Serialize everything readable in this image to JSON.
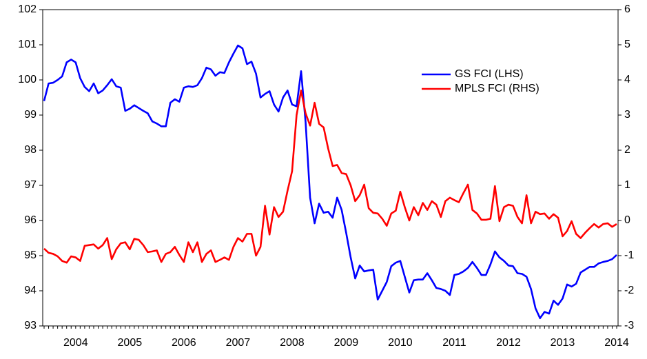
{
  "chart_data": {
    "type": "line",
    "categories": [
      null,
      null,
      null,
      null,
      null,
      null,
      null,
      "2004",
      null,
      null,
      null,
      null,
      null,
      null,
      null,
      null,
      null,
      null,
      null,
      "2005",
      null,
      null,
      null,
      null,
      null,
      null,
      null,
      null,
      null,
      null,
      null,
      "2006",
      null,
      null,
      null,
      null,
      null,
      null,
      null,
      null,
      null,
      null,
      null,
      "2007",
      null,
      null,
      null,
      null,
      null,
      null,
      null,
      null,
      null,
      null,
      null,
      "2008",
      null,
      null,
      null,
      null,
      null,
      null,
      null,
      null,
      null,
      null,
      null,
      "2009",
      null,
      null,
      null,
      null,
      null,
      null,
      null,
      null,
      null,
      null,
      null,
      "2010",
      null,
      null,
      null,
      null,
      null,
      null,
      null,
      null,
      null,
      null,
      null,
      "2011",
      null,
      null,
      null,
      null,
      null,
      null,
      null,
      null,
      null,
      null,
      null,
      "2012",
      null,
      null,
      null,
      null,
      null,
      null,
      null,
      null,
      null,
      null,
      null,
      "2013",
      null,
      null,
      null,
      null,
      null,
      null,
      null,
      null,
      null,
      null,
      null,
      "2014"
    ],
    "series": [
      {
        "name": "GS FCI (LHS)",
        "color": "#0000ff",
        "axis": "y",
        "values": [
          99.4,
          99.9,
          99.92,
          100.0,
          100.1,
          100.5,
          100.58,
          100.5,
          100.05,
          99.8,
          99.68,
          99.9,
          99.62,
          99.7,
          99.85,
          100.02,
          99.82,
          99.78,
          99.12,
          99.18,
          99.28,
          99.2,
          99.12,
          99.05,
          98.82,
          98.76,
          98.68,
          98.68,
          99.35,
          99.45,
          99.38,
          99.78,
          99.82,
          99.8,
          99.85,
          100.05,
          100.35,
          100.3,
          100.12,
          100.22,
          100.2,
          100.5,
          100.75,
          100.98,
          100.9,
          100.45,
          100.52,
          100.18,
          99.5,
          99.6,
          99.68,
          99.3,
          99.1,
          99.5,
          99.7,
          99.3,
          99.25,
          100.25,
          98.8,
          96.65,
          95.92,
          96.48,
          96.22,
          96.25,
          96.08,
          96.65,
          96.3,
          95.65,
          94.95,
          94.35,
          94.72,
          94.55,
          94.58,
          94.6,
          93.75,
          94.0,
          94.25,
          94.7,
          94.8,
          94.85,
          94.4,
          93.95,
          94.3,
          94.32,
          94.32,
          94.5,
          94.3,
          94.08,
          94.05,
          94.0,
          93.88,
          94.45,
          94.48,
          94.55,
          94.65,
          94.82,
          94.65,
          94.45,
          94.45,
          94.75,
          95.12,
          94.95,
          94.85,
          94.72,
          94.7,
          94.5,
          94.48,
          94.4,
          94.05,
          93.5,
          93.22,
          93.4,
          93.35,
          93.72,
          93.6,
          93.78,
          94.18,
          94.12,
          94.2,
          94.52,
          94.6,
          94.68,
          94.68,
          94.78,
          94.82,
          94.85,
          94.9,
          95.02
        ]
      },
      {
        "name": "MPLS FCI (RHS)",
        "color": "#ff0000",
        "axis": "y2",
        "values": [
          -0.8,
          -0.92,
          -0.95,
          -1.02,
          -1.15,
          -1.2,
          -1.02,
          -1.05,
          -1.15,
          -0.72,
          -0.7,
          -0.68,
          -0.8,
          -0.7,
          -0.5,
          -1.1,
          -0.82,
          -0.65,
          -0.62,
          -0.82,
          -0.52,
          -0.55,
          -0.7,
          -0.9,
          -0.88,
          -0.85,
          -1.18,
          -0.95,
          -0.9,
          -0.75,
          -0.98,
          -1.18,
          -0.62,
          -0.9,
          -0.62,
          -1.18,
          -0.95,
          -0.85,
          -1.18,
          -1.12,
          -1.05,
          -1.12,
          -0.75,
          -0.5,
          -0.6,
          -0.38,
          -0.38,
          -1.0,
          -0.75,
          0.42,
          -0.4,
          0.38,
          0.1,
          0.25,
          0.85,
          1.4,
          3.0,
          3.7,
          3.05,
          2.7,
          3.35,
          2.75,
          2.65,
          2.05,
          1.55,
          1.58,
          1.35,
          1.32,
          1.0,
          0.55,
          0.72,
          1.02,
          0.35,
          0.22,
          0.2,
          0.05,
          -0.15,
          0.2,
          0.28,
          0.82,
          0.38,
          0.0,
          0.38,
          0.15,
          0.5,
          0.3,
          0.55,
          0.45,
          0.1,
          0.55,
          0.65,
          0.58,
          0.52,
          0.78,
          1.02,
          0.3,
          0.2,
          0.02,
          0.02,
          0.05,
          0.98,
          -0.02,
          0.38,
          0.45,
          0.42,
          0.1,
          -0.08,
          0.72,
          -0.08,
          0.25,
          0.18,
          0.2,
          0.05,
          0.18,
          0.08,
          -0.45,
          -0.3,
          -0.02,
          -0.38,
          -0.5,
          -0.35,
          -0.22,
          -0.1,
          -0.2,
          -0.1,
          -0.08,
          -0.18,
          -0.1
        ]
      }
    ],
    "ylim": [
      93,
      102
    ],
    "yticks": [
      93,
      94,
      95,
      96,
      97,
      98,
      99,
      100,
      101,
      102
    ],
    "y2lim": [
      -3,
      6
    ],
    "y2ticks": [
      -3,
      -2,
      -1,
      0,
      1,
      2,
      3,
      4,
      5,
      6
    ],
    "legend": "upper-right"
  }
}
